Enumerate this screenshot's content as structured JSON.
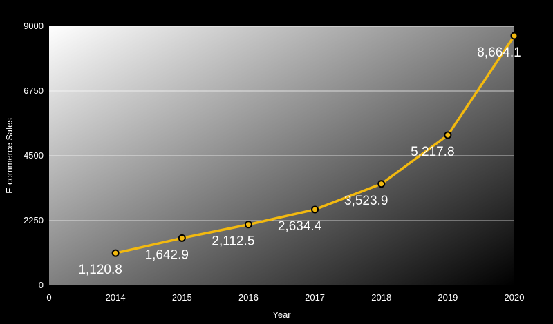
{
  "chart_data": {
    "type": "line",
    "title": "",
    "xlabel": "Year",
    "ylabel": "E-commerce Sales",
    "x": [
      2014,
      2015,
      2016,
      2017,
      2018,
      2019,
      2020
    ],
    "x_tick_labels": [
      "0",
      "2014",
      "2015",
      "2016",
      "2017",
      "2018",
      "2019",
      "2020"
    ],
    "series": [
      {
        "values": [
          1120.8,
          1642.9,
          2112.5,
          2634.4,
          3523.9,
          5217.8,
          8664.1
        ],
        "labels": [
          "1,120.8",
          "1,642.9",
          "2,112.5",
          "2,634.4",
          "3,523.9",
          "5,217.8",
          "8,664.1"
        ]
      }
    ],
    "y_ticks": [
      0,
      2250,
      4500,
      6750,
      9000
    ],
    "ylim": [
      0,
      9000
    ],
    "grid": true,
    "legend": "none",
    "colors": {
      "line": "#f2b90f",
      "marker_fill": "#f2b90f",
      "marker_stroke": "#000000",
      "background": "#000000",
      "plot_gradient_top": "#ffffff",
      "plot_gradient_bottom": "#000000",
      "gridline": "#ffffff",
      "text": "#ffffff"
    }
  }
}
